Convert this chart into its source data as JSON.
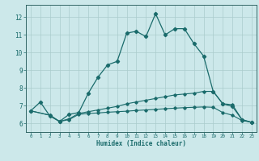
{
  "xlabel": "Humidex (Indice chaleur)",
  "background_color": "#cce8ea",
  "grid_color": "#aacccc",
  "line_color": "#1a6b6b",
  "spine_color": "#336666",
  "xlim": [
    -0.5,
    23.5
  ],
  "ylim": [
    5.5,
    12.7
  ],
  "xticks": [
    0,
    1,
    2,
    3,
    4,
    5,
    6,
    7,
    8,
    9,
    10,
    11,
    12,
    13,
    14,
    15,
    16,
    17,
    18,
    19,
    20,
    21,
    22,
    23
  ],
  "yticks": [
    6,
    7,
    8,
    9,
    10,
    11,
    12
  ],
  "series1_x": [
    0,
    1,
    2,
    3,
    4,
    5,
    6,
    7,
    8,
    9,
    10,
    11,
    12,
    13,
    14,
    15,
    16,
    17,
    18,
    19,
    20,
    21,
    22,
    23
  ],
  "series1_y": [
    6.7,
    7.2,
    6.4,
    6.1,
    6.5,
    6.6,
    7.7,
    8.6,
    9.3,
    9.5,
    11.1,
    11.2,
    10.9,
    12.2,
    11.0,
    11.35,
    11.35,
    10.5,
    9.8,
    7.8,
    7.1,
    6.95,
    6.2,
    6.05
  ],
  "series2_x": [
    0,
    2,
    3,
    4,
    5,
    6,
    7,
    8,
    9,
    10,
    11,
    12,
    13,
    14,
    15,
    16,
    17,
    18,
    19,
    20,
    21,
    22,
    23
  ],
  "series2_y": [
    6.7,
    6.45,
    6.1,
    6.25,
    6.55,
    6.65,
    6.75,
    6.85,
    6.95,
    7.1,
    7.2,
    7.3,
    7.4,
    7.5,
    7.6,
    7.65,
    7.7,
    7.8,
    7.8,
    7.1,
    7.05,
    6.2,
    6.05
  ],
  "series3_x": [
    0,
    2,
    3,
    4,
    5,
    6,
    7,
    8,
    9,
    10,
    11,
    12,
    13,
    14,
    15,
    16,
    17,
    18,
    19,
    20,
    21,
    22,
    23
  ],
  "series3_y": [
    6.7,
    6.45,
    6.1,
    6.2,
    6.5,
    6.55,
    6.58,
    6.62,
    6.65,
    6.68,
    6.72,
    6.75,
    6.78,
    6.82,
    6.85,
    6.88,
    6.9,
    6.92,
    6.9,
    6.6,
    6.45,
    6.15,
    6.05
  ]
}
